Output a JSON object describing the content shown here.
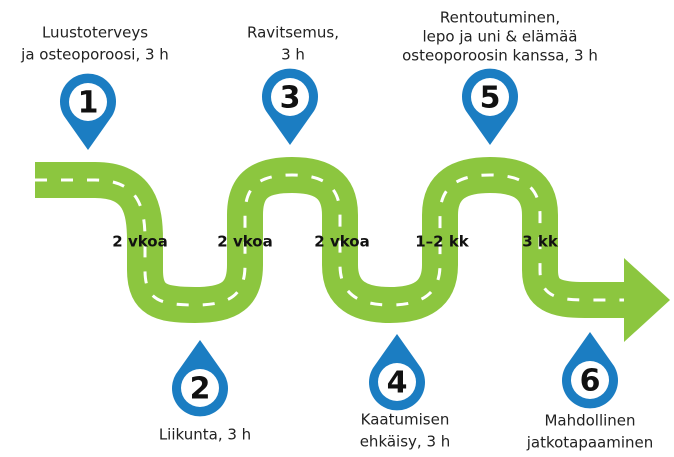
{
  "steps": [
    {
      "number": "1",
      "label": [
        "Luustoterveys",
        "ja osteoporoosi, 3 h"
      ]
    },
    {
      "number": "2",
      "label": [
        "Liikunta, 3 h"
      ]
    },
    {
      "number": "3",
      "label": [
        "Ravitsemus,",
        "3 h"
      ]
    },
    {
      "number": "4",
      "label": [
        "Kaatumisen",
        "ehkäisy, 3 h"
      ]
    },
    {
      "number": "5",
      "label": [
        "Rentoutuminen,",
        "lepo ja uni & elämää",
        "osteoporoosin kanssa, 3 h"
      ]
    },
    {
      "number": "6",
      "label": [
        "Mahdollinen",
        "jatkotapaaminen"
      ]
    }
  ],
  "intervals": [
    "2 vkoa",
    "2 vkoa",
    "2 vkoa",
    "1–2 kk",
    "3 kk"
  ]
}
